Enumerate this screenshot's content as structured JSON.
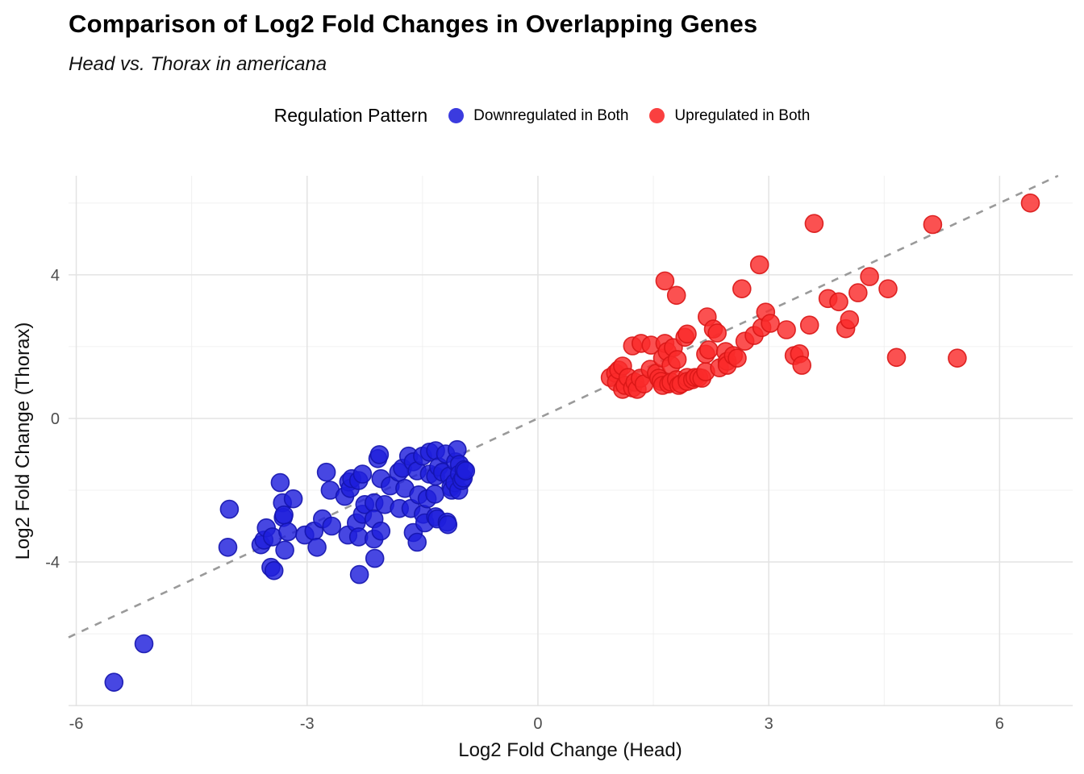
{
  "header": {
    "title": "Comparison of Log2 Fold Changes in Overlapping Genes",
    "subtitle": "Head vs. Thorax in americana"
  },
  "legend": {
    "title": "Regulation Pattern",
    "items": [
      {
        "label": "Downregulated in Both",
        "color": "#3B3BDF"
      },
      {
        "label": "Upregulated in Both",
        "color": "#FA4040"
      }
    ]
  },
  "chart_data": {
    "type": "scatter",
    "title": "Comparison of Log2 Fold Changes in Overlapping Genes",
    "subtitle": "Head vs. Thorax in americana",
    "xlabel": "Log2 Fold Change (Head)",
    "ylabel": "Log2 Fold Change (Thorax)",
    "xlim": [
      -6.1,
      6.95
    ],
    "ylim": [
      -8.02,
      6.76
    ],
    "x_major_ticks": [
      -6,
      -3,
      0,
      3,
      6
    ],
    "y_major_ticks": [
      4,
      0,
      -4
    ],
    "x_minor_gridlines": [
      -4.5,
      -1.5,
      1.5,
      4.5
    ],
    "y_major_gridlines": [
      -8,
      -4,
      0,
      4
    ],
    "y_minor_gridlines": [
      -6,
      -2,
      2,
      6
    ],
    "grid_major_color": "#E3E3E3",
    "grid_minor_color": "#F0F0F0",
    "identity_line": {
      "equation": "y = x",
      "style": "dashed",
      "color": "#9A9A9A"
    },
    "marker": {
      "radius": 11,
      "fill_opacity": 0.82,
      "stroke_opacity": 0.9,
      "stroke_width": 1.6
    },
    "series": [
      {
        "name": "Downregulated in Both",
        "fill": "#1E1EDC",
        "stroke": "#1414AE",
        "points": [
          [
            -5.51,
            -7.35
          ],
          [
            -5.12,
            -6.28
          ],
          [
            -4.01,
            -2.53
          ],
          [
            -4.03,
            -3.59
          ],
          [
            -3.6,
            -3.52
          ],
          [
            -3.56,
            -3.39
          ],
          [
            -3.53,
            -3.05
          ],
          [
            -3.47,
            -4.15
          ],
          [
            -3.43,
            -4.24
          ],
          [
            -3.45,
            -3.3
          ],
          [
            -3.35,
            -1.79
          ],
          [
            -3.32,
            -2.35
          ],
          [
            -3.31,
            -2.76
          ],
          [
            -3.29,
            -3.67
          ],
          [
            -3.25,
            -3.16
          ],
          [
            -3.18,
            -2.24
          ],
          [
            -3.3,
            -2.69
          ],
          [
            -3.03,
            -3.25
          ],
          [
            -2.91,
            -3.14
          ],
          [
            -2.87,
            -3.59
          ],
          [
            -2.8,
            -2.8
          ],
          [
            -2.75,
            -1.5
          ],
          [
            -2.7,
            -2.0
          ],
          [
            -2.68,
            -3.0
          ],
          [
            -2.51,
            -2.17
          ],
          [
            -2.47,
            -3.25
          ],
          [
            -2.46,
            -1.77
          ],
          [
            -2.44,
            -1.95
          ],
          [
            -2.42,
            -1.68
          ],
          [
            -2.32,
            -4.35
          ],
          [
            -2.36,
            -2.91
          ],
          [
            -2.33,
            -3.3
          ],
          [
            -2.33,
            -1.73
          ],
          [
            -2.28,
            -1.55
          ],
          [
            -2.28,
            -2.67
          ],
          [
            -2.25,
            -2.4
          ],
          [
            -2.13,
            -2.35
          ],
          [
            -2.13,
            -2.8
          ],
          [
            -2.13,
            -3.36
          ],
          [
            -2.12,
            -3.9
          ],
          [
            -2.08,
            -1.12
          ],
          [
            -2.06,
            -1.01
          ],
          [
            -2.04,
            -1.68
          ],
          [
            -2.04,
            -3.14
          ],
          [
            -1.99,
            -2.4
          ],
          [
            -1.92,
            -1.88
          ],
          [
            -1.81,
            -1.5
          ],
          [
            -1.8,
            -2.51
          ],
          [
            -1.76,
            -1.39
          ],
          [
            -1.73,
            -1.95
          ],
          [
            -1.68,
            -1.05
          ],
          [
            -1.65,
            -2.51
          ],
          [
            -1.62,
            -1.21
          ],
          [
            -1.62,
            -3.18
          ],
          [
            -1.57,
            -1.46
          ],
          [
            -1.57,
            -3.45
          ],
          [
            -1.55,
            -2.13
          ],
          [
            -1.5,
            -1.05
          ],
          [
            -1.49,
            -2.67
          ],
          [
            -1.47,
            -2.91
          ],
          [
            -1.44,
            -2.24
          ],
          [
            -1.41,
            -1.55
          ],
          [
            -1.41,
            -0.94
          ],
          [
            -1.33,
            -0.9
          ],
          [
            -1.34,
            -2.11
          ],
          [
            -1.33,
            -2.74
          ],
          [
            -1.33,
            -1.61
          ],
          [
            -1.31,
            -2.8
          ],
          [
            -1.29,
            -1.35
          ],
          [
            -1.24,
            -1.5
          ],
          [
            -1.2,
            -0.99
          ],
          [
            -1.18,
            -2.89
          ],
          [
            -1.17,
            -2.96
          ],
          [
            -1.15,
            -1.61
          ],
          [
            -1.13,
            -1.91
          ],
          [
            -1.12,
            -2.0
          ],
          [
            -1.08,
            -1.79
          ],
          [
            -1.07,
            -1.21
          ],
          [
            -1.05,
            -0.87
          ],
          [
            -1.03,
            -2.0
          ],
          [
            -1.02,
            -1.28
          ],
          [
            -1.02,
            -1.55
          ],
          [
            -0.99,
            -1.73
          ],
          [
            -0.97,
            -1.66
          ],
          [
            -0.96,
            -1.43
          ],
          [
            -0.94,
            -1.46
          ]
        ]
      },
      {
        "name": "Upregulated in Both",
        "fill": "#FA2B2B",
        "stroke": "#D91616",
        "points": [
          [
            0.94,
            1.14
          ],
          [
            1.01,
            1.26
          ],
          [
            1.02,
            1.01
          ],
          [
            1.05,
            1.35
          ],
          [
            1.1,
            1.46
          ],
          [
            1.1,
            0.81
          ],
          [
            1.13,
            0.92
          ],
          [
            1.17,
            1.14
          ],
          [
            1.23,
            2.02
          ],
          [
            1.23,
            0.85
          ],
          [
            1.26,
            1.01
          ],
          [
            1.29,
            0.81
          ],
          [
            1.33,
            1.12
          ],
          [
            1.34,
            2.09
          ],
          [
            1.38,
            0.96
          ],
          [
            1.46,
            1.37
          ],
          [
            1.47,
            2.04
          ],
          [
            1.54,
            1.26
          ],
          [
            1.57,
            1.12
          ],
          [
            1.6,
            1.03
          ],
          [
            1.62,
            1.68
          ],
          [
            1.62,
            0.92
          ],
          [
            1.65,
            2.09
          ],
          [
            1.65,
            3.83
          ],
          [
            1.68,
            1.86
          ],
          [
            1.7,
            0.96
          ],
          [
            1.73,
            1.48
          ],
          [
            1.73,
            1.01
          ],
          [
            1.76,
            1.97
          ],
          [
            1.8,
            3.43
          ],
          [
            1.8,
            1.08
          ],
          [
            1.81,
            1.64
          ],
          [
            1.83,
            0.92
          ],
          [
            1.86,
            0.96
          ],
          [
            1.91,
            2.26
          ],
          [
            1.94,
            2.35
          ],
          [
            1.94,
            1.14
          ],
          [
            1.94,
            1.03
          ],
          [
            2.01,
            1.08
          ],
          [
            2.04,
            1.14
          ],
          [
            2.09,
            1.14
          ],
          [
            2.13,
            1.12
          ],
          [
            2.18,
            1.3
          ],
          [
            2.18,
            1.79
          ],
          [
            2.2,
            2.83
          ],
          [
            2.22,
            1.91
          ],
          [
            2.28,
            2.49
          ],
          [
            2.33,
            2.38
          ],
          [
            2.36,
            1.41
          ],
          [
            2.44,
            1.86
          ],
          [
            2.46,
            1.59
          ],
          [
            2.46,
            1.48
          ],
          [
            2.54,
            1.75
          ],
          [
            2.59,
            1.68
          ],
          [
            2.65,
            3.61
          ],
          [
            2.69,
            2.15
          ],
          [
            2.81,
            2.31
          ],
          [
            2.88,
            4.28
          ],
          [
            2.91,
            2.53
          ],
          [
            2.96,
            2.96
          ],
          [
            3.02,
            2.65
          ],
          [
            3.23,
            2.47
          ],
          [
            3.33,
            1.75
          ],
          [
            3.4,
            1.8
          ],
          [
            3.43,
            1.48
          ],
          [
            3.53,
            2.6
          ],
          [
            3.59,
            5.43
          ],
          [
            3.77,
            3.34
          ],
          [
            3.91,
            3.25
          ],
          [
            4.0,
            2.5
          ],
          [
            4.05,
            2.75
          ],
          [
            4.16,
            3.5
          ],
          [
            4.31,
            3.95
          ],
          [
            4.55,
            3.61
          ],
          [
            4.66,
            1.7
          ],
          [
            5.13,
            5.4
          ],
          [
            5.45,
            1.68
          ],
          [
            6.4,
            6.0
          ]
        ]
      }
    ]
  }
}
